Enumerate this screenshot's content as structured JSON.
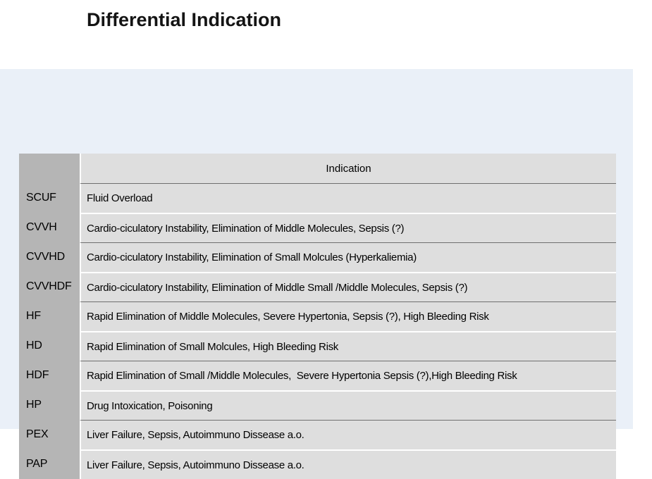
{
  "title": "Differential Indication",
  "table": {
    "header": "Indication",
    "rows": [
      {
        "label": "SCUF",
        "indication": "Fluid Overload"
      },
      {
        "label": "CVVH",
        "indication": "Cardio-ciculatory Instability, Elimination of Middle Molecules, Sepsis (?)"
      },
      {
        "label": "CVVHD",
        "indication": "Cardio-ciculatory Instability, Elimination of Small Molcules (Hyperkaliemia)"
      },
      {
        "label": "CVVHDF",
        "indication": "Cardio-ciculatory Instability, Elimination of Middle Small /Middle Molecules, Sepsis (?)"
      },
      {
        "label": "HF",
        "indication": "Rapid Elimination of Middle Molecules, Severe Hypertonia, Sepsis (?), High Bleeding Risk"
      },
      {
        "label": "HD",
        "indication": "Rapid Elimination of Small Molcules, High Bleeding Risk"
      },
      {
        "label": "HDF",
        "indication": "Rapid Elimination of Small /Middle Molecules,  Severe Hypertonia Sepsis (?),High Bleeding Risk"
      },
      {
        "label": "HP",
        "indication": "Drug Intoxication, Poisoning"
      },
      {
        "label": "PEX",
        "indication": "Liver Failure, Sepsis, Autoimmuno Dissease a.o."
      },
      {
        "label": "PAP",
        "indication": "Liver Failure, Sepsis, Autoimmuno Dissease a.o."
      }
    ]
  },
  "colors": {
    "panel_bg": "#eaf0f8",
    "label_column_bg": "#b5b5b5",
    "cell_bg": "#dedede",
    "separator_dark": "#6f6f6f",
    "separator_light": "#ffffff",
    "title_color": "#141414"
  }
}
